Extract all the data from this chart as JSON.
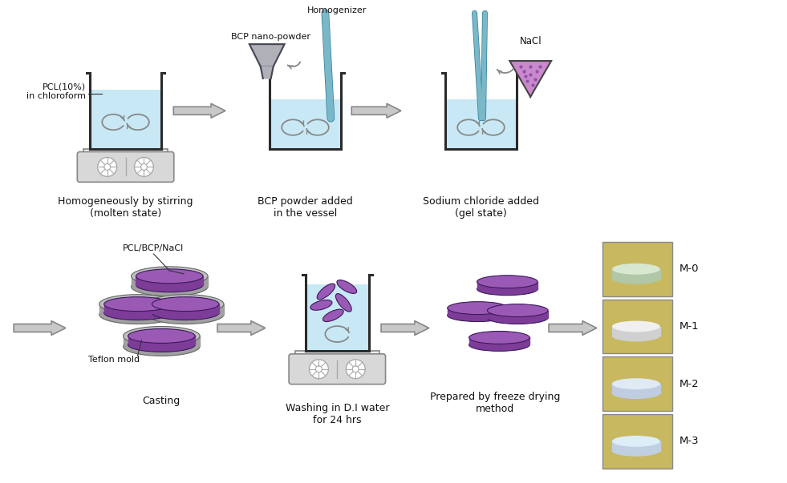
{
  "bg_color": "#ffffff",
  "step1_label": "Homogeneously by stirring\n(molten state)",
  "step2_label": "BCP powder added\nin the vessel",
  "step3_label": "Sodium chloride added\n(gel state)",
  "step4_label": "Casting",
  "step5_label": "Washing in D.I water\nfor 24 hrs",
  "step6_label": "Prepared by freeze drying\nmethod",
  "annot_pcl": "PCL(10%)\nin chloroform",
  "annot_bcp": "BCP nano-powder",
  "annot_hom": "Homogenizer",
  "annot_nacl": "NaCl",
  "annot_pcl_nacl": "PCL/BCP/NaCl",
  "annot_teflon": "Teflon mold",
  "liquid_color": "#c8e8f5",
  "label_color": "#111111",
  "vessel_line_color": "#2a2a2a",
  "stirrer_color": "#888888",
  "hotplate_color": "#d8d8d8",
  "hotplate_edge": "#888888",
  "disk_top": "#9b59b6",
  "disk_side": "#7d3c98",
  "disk_rim_top": "#c0c0c0",
  "disk_rim_side": "#a0a0a0",
  "funnel_color": "#b0b0b8",
  "funnel_edge": "#444455",
  "homog_color": "#7ab8c8",
  "homog_edge": "#2a7a9a",
  "nacl_tri_color": "#cc88cc",
  "nacl_tri_edge": "#444444",
  "nacl_dot_color": "#8855aa",
  "arrow_fill": "#c8c8c8",
  "arrow_edge": "#888888",
  "stir_arrow_color": "#888888",
  "m_labels": [
    "M-0",
    "M-1",
    "M-2",
    "M-3"
  ],
  "photo_bg": [
    "#c8b860",
    "#c8b860",
    "#c8b860",
    "#c8b860"
  ],
  "photo_disk_top": [
    "#d8e8d0",
    "#f0f0f0",
    "#e0eaf5",
    "#ddeef8"
  ],
  "photo_disk_side": [
    "#b0c8a8",
    "#d0d0d0",
    "#c0cce0",
    "#c0d0e0"
  ]
}
